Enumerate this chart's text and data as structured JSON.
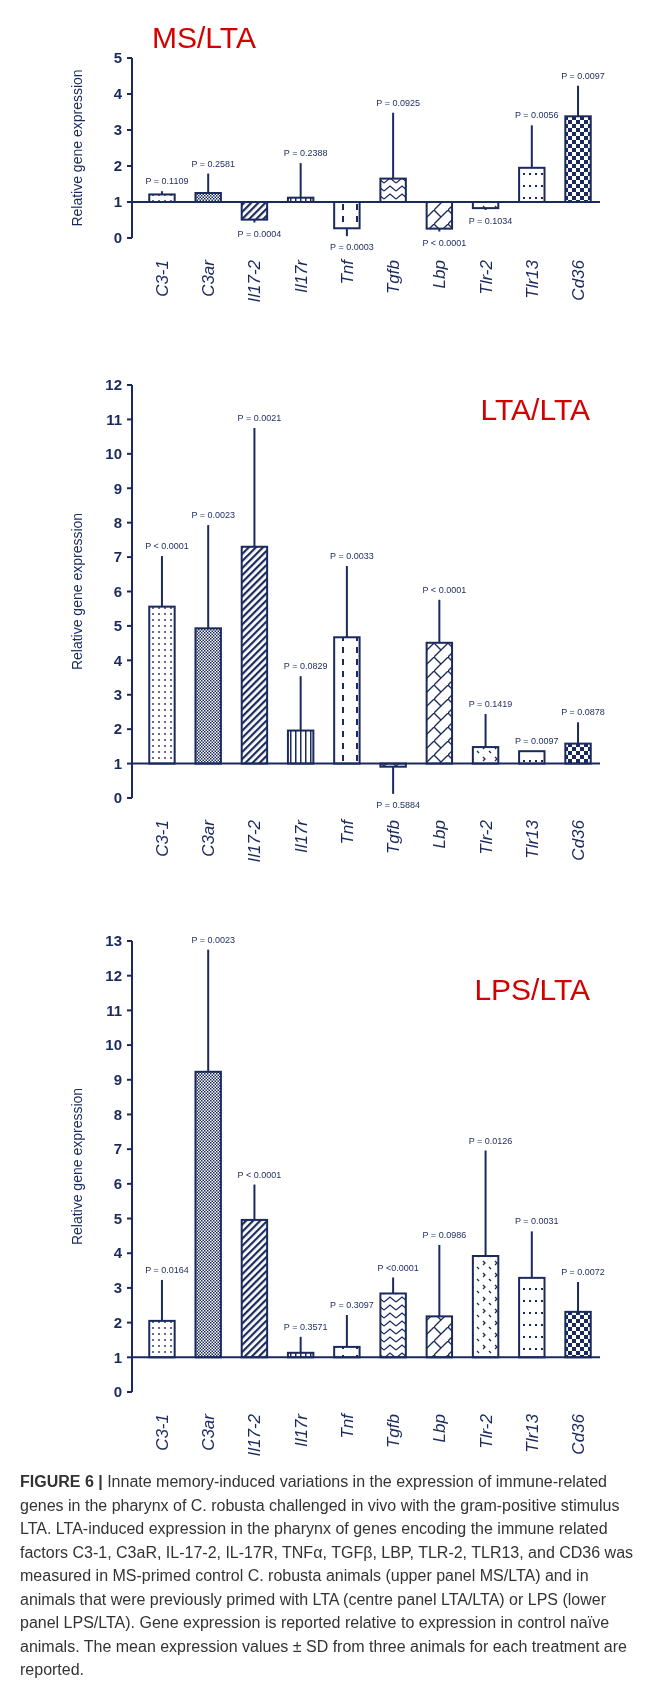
{
  "chart_data": [
    {
      "type": "bar",
      "title": "MS/LTA",
      "ylabel": "Relative gene expression",
      "color": "#1b2a5e",
      "categories": [
        "C3-1",
        "C3ar",
        "Il17-2",
        "Il17r",
        "Tnf",
        "Tgfb",
        "Lbp",
        "Tlr-2",
        "Tlr13",
        "Cd36"
      ],
      "base": [
        1,
        1,
        1,
        1,
        1,
        1,
        1,
        1,
        1,
        1
      ],
      "values": [
        0.21,
        0.25,
        -0.49,
        0.12,
        -0.73,
        0.65,
        -0.74,
        -0.17,
        0.95,
        2.38
      ],
      "errors": [
        [
          1.21,
          1.3
        ],
        [
          1.25,
          1.79
        ],
        [
          0.43,
          0.51
        ],
        [
          1.12,
          2.08
        ],
        [
          0.05,
          0.27
        ],
        [
          1.65,
          3.48
        ],
        [
          0.18,
          0.26
        ],
        [
          0.78,
          0.83
        ],
        [
          1.95,
          3.13
        ],
        [
          3.38,
          4.23
        ]
      ],
      "ylim": [
        0,
        5
      ],
      "yticks": [
        0,
        1,
        2,
        3,
        4,
        5
      ],
      "ref_lines": [
        {
          "axis": "y",
          "value": 1
        }
      ],
      "annotations": [
        {
          "text": "P = 0.1109",
          "x": "C3-1",
          "y": 1.3
        },
        {
          "text": "P = 0.2581",
          "x": "C3ar",
          "y": 1.79
        },
        {
          "text": "P = 0.0004",
          "x": "Il17-2",
          "y": 0.43
        },
        {
          "text": "P = 0.2388",
          "x": "Il17r",
          "y": 2.08
        },
        {
          "text": "P = 0.0003",
          "x": "Tnf",
          "y": 0.05
        },
        {
          "text": "P = 0.0925",
          "x": "Tgfb",
          "y": 3.48
        },
        {
          "text": "P < 0.0001",
          "x": "Lbp",
          "y": 0.18
        },
        {
          "text": "P = 0.1034",
          "x": "Tlr-2",
          "y": 0.78
        },
        {
          "text": "P = 0.0056",
          "x": "Tlr13",
          "y": 3.13
        },
        {
          "text": "P = 0.0097",
          "x": "Cd36",
          "y": 4.23
        }
      ]
    },
    {
      "type": "bar",
      "title": "LTA/LTA",
      "ylabel": "Relative gene expression",
      "color": "#1b2a5e",
      "categories": [
        "C3-1",
        "C3ar",
        "Il17-2",
        "Il17r",
        "Tnf",
        "Tgfb",
        "Lbp",
        "Tlr-2",
        "Tlr13",
        "Cd36"
      ],
      "base": [
        1,
        1,
        1,
        1,
        1,
        1,
        1,
        1,
        1,
        1
      ],
      "values": [
        4.56,
        3.93,
        6.3,
        0.96,
        3.67,
        -0.09,
        3.51,
        0.48,
        0.36,
        0.58
      ],
      "errors": [
        [
          5.56,
          7.03
        ],
        [
          4.93,
          7.93
        ],
        [
          7.3,
          10.75
        ],
        [
          1.96,
          3.54
        ],
        [
          4.67,
          6.74
        ],
        [
          0.12,
          0.91
        ],
        [
          4.51,
          5.76
        ],
        [
          1.48,
          2.44
        ],
        null,
        [
          1.58,
          2.2
        ]
      ],
      "ylim": [
        0,
        12
      ],
      "yticks": [
        0,
        1,
        2,
        3,
        4,
        5,
        6,
        7,
        8,
        9,
        10,
        11,
        12
      ],
      "ref_lines": [
        {
          "axis": "y",
          "value": 1
        }
      ],
      "annotations": [
        {
          "text": "P < 0.0001",
          "x": "C3-1",
          "y": 7.03
        },
        {
          "text": "P = 0.0023",
          "x": "C3ar",
          "y": 7.93
        },
        {
          "text": "P = 0.0021",
          "x": "Il17-2",
          "y": 10.75
        },
        {
          "text": "P = 0.0829",
          "x": "Il17r",
          "y": 3.54
        },
        {
          "text": "P = 0.0033",
          "x": "Tnf",
          "y": 6.74
        },
        {
          "text": "P = 0.5884",
          "x": "Tgfb",
          "y": 0.12
        },
        {
          "text": "P < 0.0001",
          "x": "Lbp",
          "y": 5.76
        },
        {
          "text": "P = 0.1419",
          "x": "Tlr-2",
          "y": 2.44
        },
        {
          "text": "P = 0.0097",
          "x": "Tlr13",
          "y": 1.36
        },
        {
          "text": "P = 0.0878",
          "x": "Cd36",
          "y": 2.2
        }
      ]
    },
    {
      "type": "bar",
      "title": "LPS/LTA",
      "ylabel": "Relative gene expression",
      "color": "#1b2a5e",
      "categories": [
        "C3-1",
        "C3ar",
        "Il17-2",
        "Il17r",
        "Tnf",
        "Tgfb",
        "Lbp",
        "Tlr-2",
        "Tlr13",
        "Cd36"
      ],
      "base": [
        1,
        1,
        1,
        1,
        1,
        1,
        1,
        1,
        1,
        1
      ],
      "values": [
        1.05,
        8.23,
        3.96,
        0.13,
        0.3,
        1.84,
        1.18,
        2.92,
        2.29,
        1.31
      ],
      "errors": [
        [
          2.05,
          3.23
        ],
        [
          9.23,
          12.75
        ],
        [
          4.96,
          5.98
        ],
        [
          1.13,
          1.59
        ],
        [
          1.3,
          2.22
        ],
        [
          2.84,
          3.3
        ],
        [
          2.18,
          4.24
        ],
        [
          3.92,
          6.96
        ],
        [
          3.29,
          4.63
        ],
        [
          2.31,
          3.17
        ]
      ],
      "ylim": [
        0,
        13
      ],
      "yticks": [
        0,
        1,
        2,
        3,
        4,
        5,
        6,
        7,
        8,
        9,
        10,
        11,
        12,
        13
      ],
      "ref_lines": [
        {
          "axis": "y",
          "value": 1
        }
      ],
      "annotations": [
        {
          "text": "P = 0.0164",
          "x": "C3-1",
          "y": 3.23
        },
        {
          "text": "P = 0.0023",
          "x": "C3ar",
          "y": 12.75
        },
        {
          "text": "P < 0.0001",
          "x": "Il17-2",
          "y": 5.98
        },
        {
          "text": "P = 0.3571",
          "x": "Il17r",
          "y": 1.59
        },
        {
          "text": "P = 0.3097",
          "x": "Tnf",
          "y": 2.22
        },
        {
          "text": "P <0.0001",
          "x": "Tgfb",
          "y": 3.3
        },
        {
          "text": "P = 0.0986",
          "x": "Lbp",
          "y": 4.24
        },
        {
          "text": "P = 0.0126",
          "x": "Tlr-2",
          "y": 6.96
        },
        {
          "text": "P = 0.0031",
          "x": "Tlr13",
          "y": 4.63
        },
        {
          "text": "P = 0.0072",
          "x": "Cd36",
          "y": 3.17
        },
        "FIGURE 6 | Innate memory-induced variations in the expression of immune-related genes in the pharynx of C. robusta challenged in vivo with the gram-positive stimulus LTA. LTA-induced expression in the pharynx of genes encoding the immune related factors C3-1, C3aR, IL-17-2, IL-17R, TNFα, TGFβ, LBP, TLR-2, TLR13, and CD36 was measured in MS-primed control C. robusta animals (upper panel MS/LTA) and in animals that were previously primed with LTA (centre panel LTA/LTA) or LPS (lower panel LPS/LTA). Gene expression is reported relative to expression in control naïve animals. The mean expression values ± SD from three animals for each treatment are reported."
      ]
    }
  ]
}
